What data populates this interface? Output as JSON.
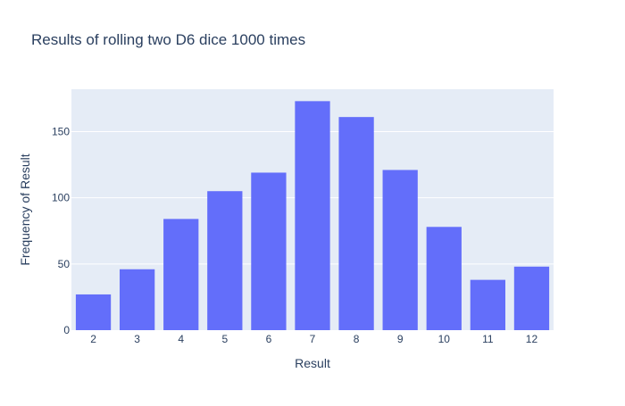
{
  "chart_data": {
    "type": "bar",
    "title": "Results of rolling two D6 dice 1000 times",
    "xlabel": "Result",
    "ylabel": "Frequency of Result",
    "categories": [
      "2",
      "3",
      "4",
      "5",
      "6",
      "7",
      "8",
      "9",
      "10",
      "11",
      "12"
    ],
    "values": [
      27,
      46,
      84,
      105,
      119,
      173,
      161,
      121,
      78,
      38,
      48
    ],
    "ylim": [
      0,
      182
    ],
    "yticks": [
      0,
      50,
      100,
      150
    ],
    "grid": true,
    "legend": "none",
    "colors": {
      "bar": "#636efa",
      "plot_background": "#e5ecf6",
      "gridline": "#ffffff",
      "text": "#2a3f5f"
    }
  }
}
